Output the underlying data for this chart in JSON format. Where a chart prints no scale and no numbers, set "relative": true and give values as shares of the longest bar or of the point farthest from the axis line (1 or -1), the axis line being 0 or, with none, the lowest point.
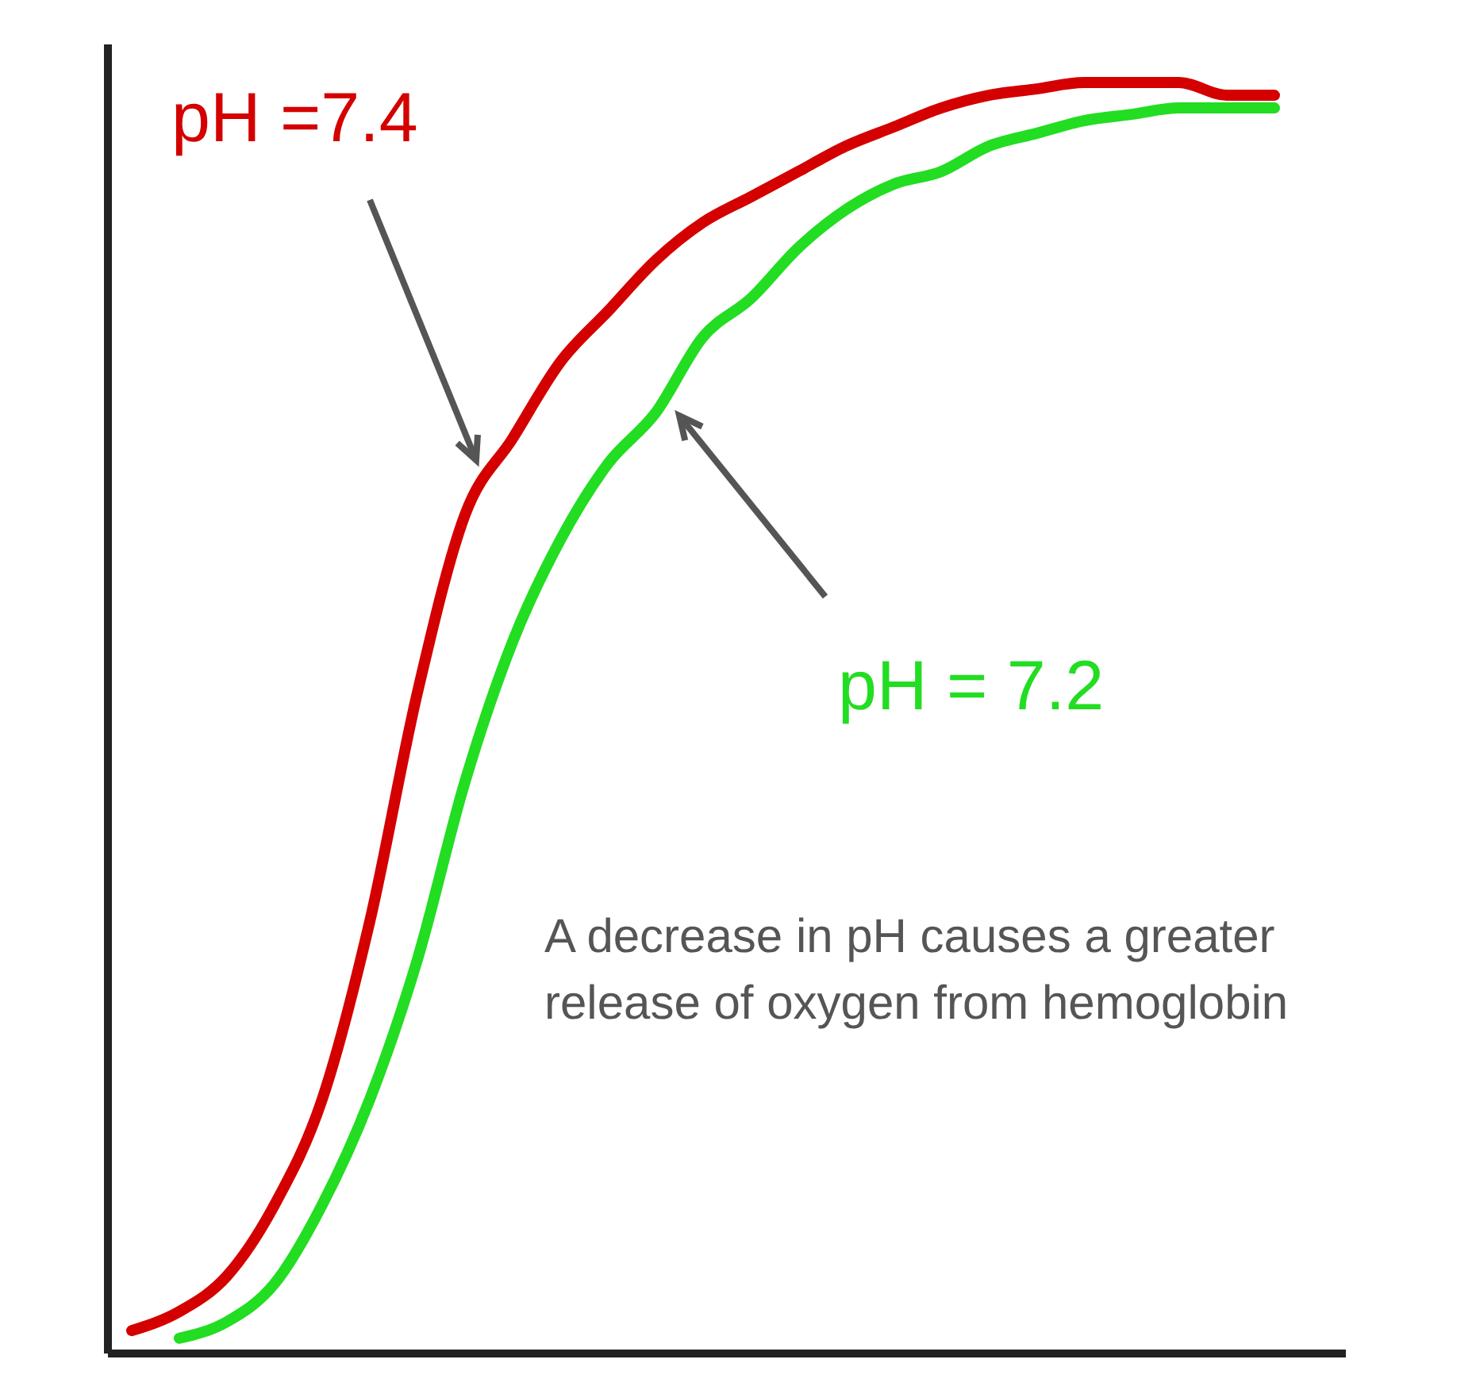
{
  "chart_data": {
    "type": "line",
    "relative": true,
    "marker": "none",
    "categories": [
      null,
      null,
      null,
      null,
      null,
      null,
      null,
      null,
      null,
      null,
      null,
      null,
      null,
      null,
      null,
      null,
      null,
      null,
      null,
      null,
      null,
      null,
      null,
      null,
      null
    ],
    "series": [
      {
        "name": "pH =7.4",
        "color": "#d40000",
        "values": [
          0.018,
          0.033,
          0.061,
          0.117,
          0.2,
          0.34,
          0.52,
          0.66,
          0.72,
          0.78,
          0.82,
          0.86,
          0.89,
          0.91,
          0.93,
          0.95,
          0.965,
          0.98,
          0.99,
          0.995,
          1,
          1,
          1,
          0.99,
          0.99
        ]
      },
      {
        "name": "pH = 7.2",
        "color": "#22dd22",
        "values": [
          null,
          0.012,
          0.025,
          0.055,
          0.117,
          0.2,
          0.31,
          0.45,
          0.56,
          0.64,
          0.7,
          0.74,
          0.8,
          0.83,
          0.87,
          0.9,
          0.92,
          0.93,
          0.95,
          0.96,
          0.97,
          0.975,
          0.98,
          0.98,
          0.98
        ]
      }
    ],
    "annotations": [
      "A decrease in pH causes a greater release of oxygen from hemoglobin"
    ]
  }
}
